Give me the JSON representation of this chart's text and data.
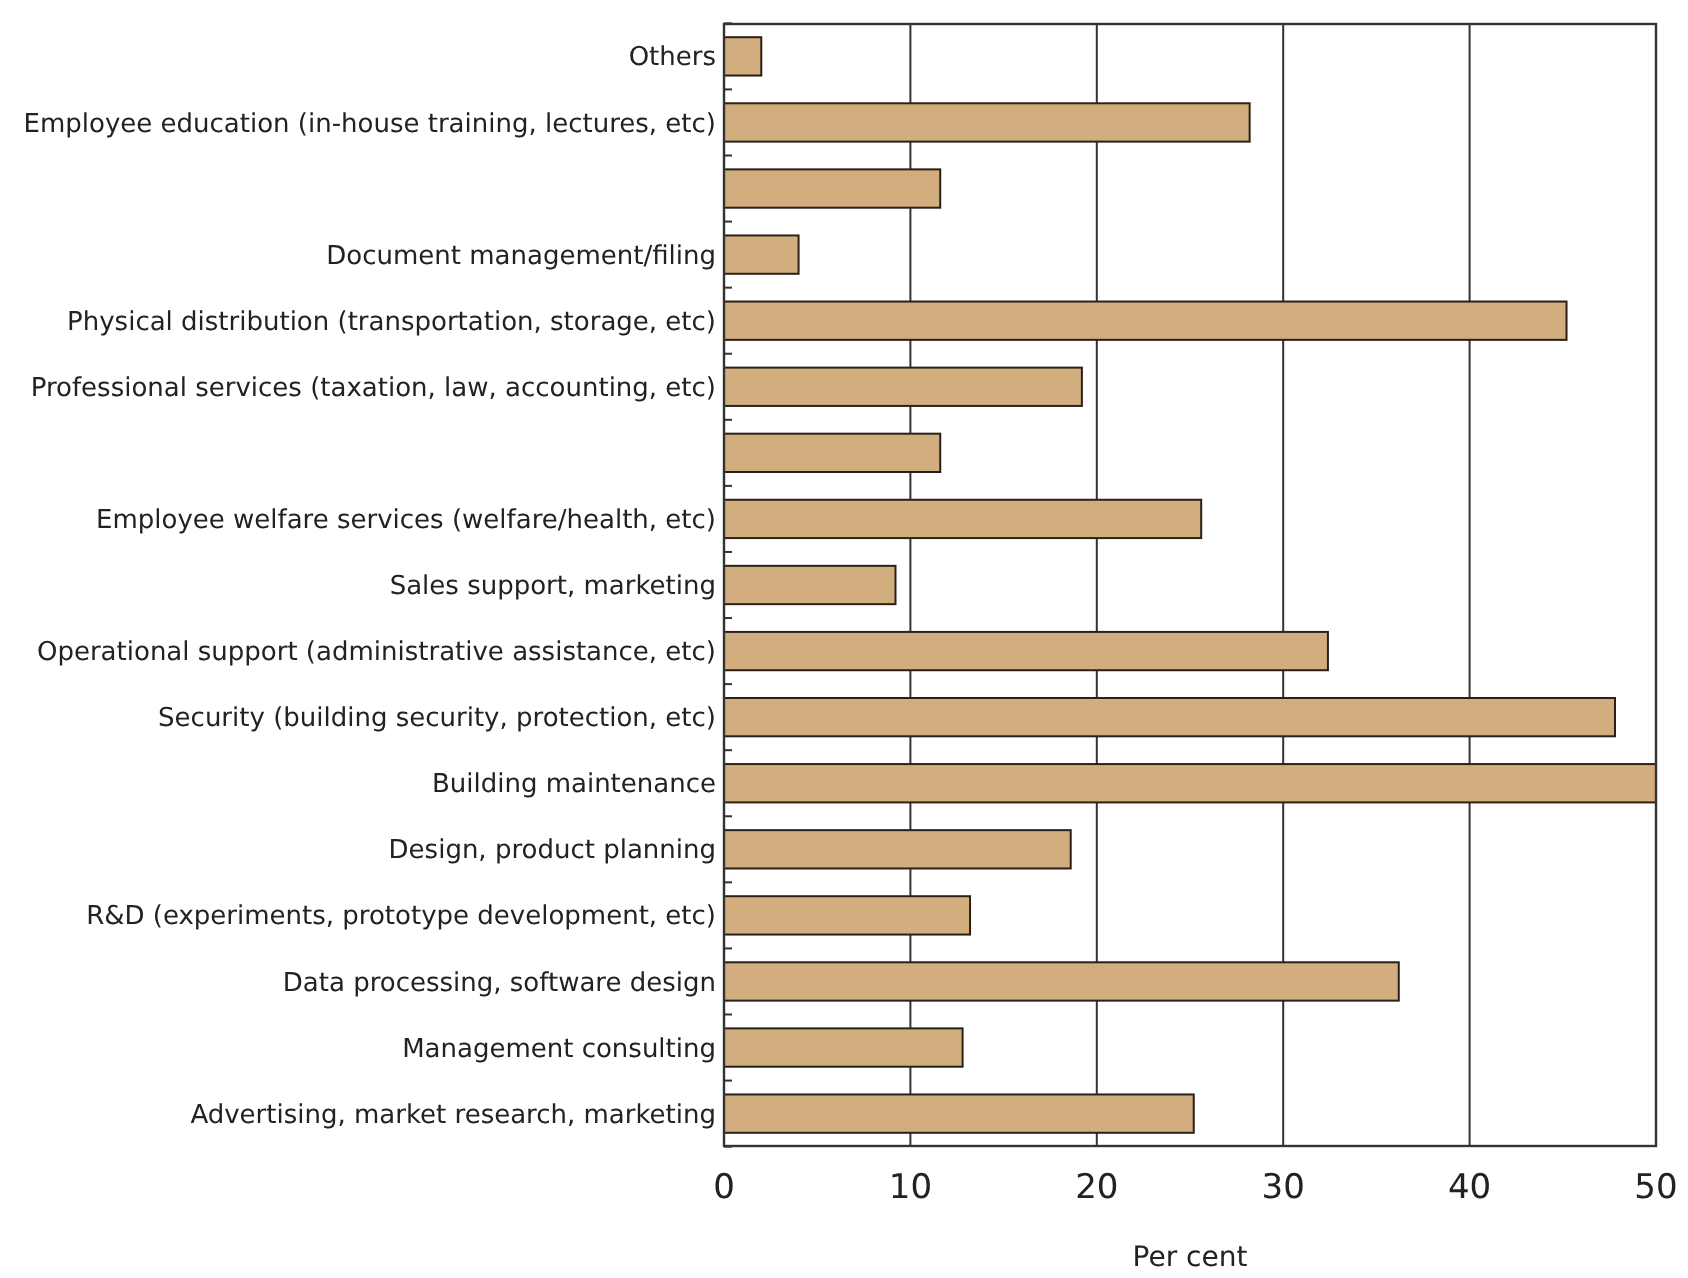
{
  "chart_data": {
    "type": "bar",
    "orientation": "horizontal",
    "xlabel": "Per cent",
    "categories": [
      "Others",
      "Employee education (in-house training, lectures, etc)",
      null,
      "Document management/filing",
      "Physical distribution (transportation, storage, etc)",
      "Professional services (taxation, law, accounting, etc)",
      null,
      "Employee welfare services (welfare/health, etc)",
      "Sales support, marketing",
      "Operational support (administrative assistance, etc)",
      "Security (building security, protection, etc)",
      "Building maintenance",
      "Design, product planning",
      "R&D  (experiments, prototype development, etc)",
      "Data processing, software design",
      "Management consulting",
      "Advertising, market research, marketing"
    ],
    "values": [
      2.0,
      28.2,
      11.6,
      4.0,
      45.2,
      19.2,
      11.6,
      25.6,
      9.2,
      32.4,
      47.8,
      50.0,
      18.6,
      13.2,
      36.2,
      12.8,
      25.2
    ],
    "color": "#d2ae7e",
    "xlim": [
      0,
      50
    ],
    "xticks": [
      0,
      10,
      20,
      30,
      40,
      50
    ],
    "grid": "x"
  }
}
